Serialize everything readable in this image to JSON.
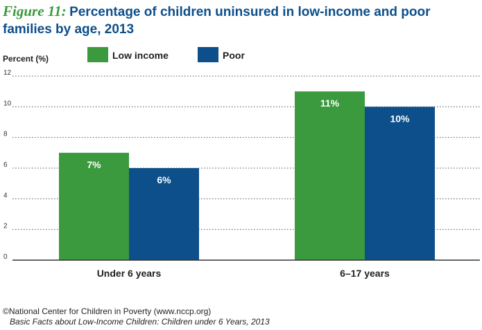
{
  "figure": {
    "label": "Figure 11:",
    "title": "Percentage of children uninsured in low-income and poor families by age, 2013"
  },
  "footer": {
    "source": "©National Center for Children in Poverty (www.nccp.org)",
    "publication": "Basic Facts about Low-Income Children: Children under 6 Years, 2013"
  },
  "colors": {
    "low_income": "#3a9a3d",
    "poor": "#0c4f8a",
    "grid": "#555555",
    "axis": "#333333"
  },
  "chart_data": {
    "type": "bar",
    "title": "Percentage of children uninsured in low-income and poor families by age, 2013",
    "ylabel": "Percent (%)",
    "xlabel": "",
    "categories": [
      "Under 6 years",
      "6–17 years"
    ],
    "series": [
      {
        "name": "Low income",
        "values": [
          7,
          11
        ],
        "labels": [
          "7%",
          "11%"
        ],
        "color": "#3a9a3d"
      },
      {
        "name": "Poor",
        "values": [
          6,
          10
        ],
        "labels": [
          "6%",
          "10%"
        ],
        "color": "#0c4f8a"
      }
    ],
    "ylim": [
      0,
      12
    ],
    "yticks": [
      0,
      2,
      4,
      6,
      8,
      10,
      12
    ],
    "grid": "horizontal dotted",
    "legend": "top-left"
  }
}
